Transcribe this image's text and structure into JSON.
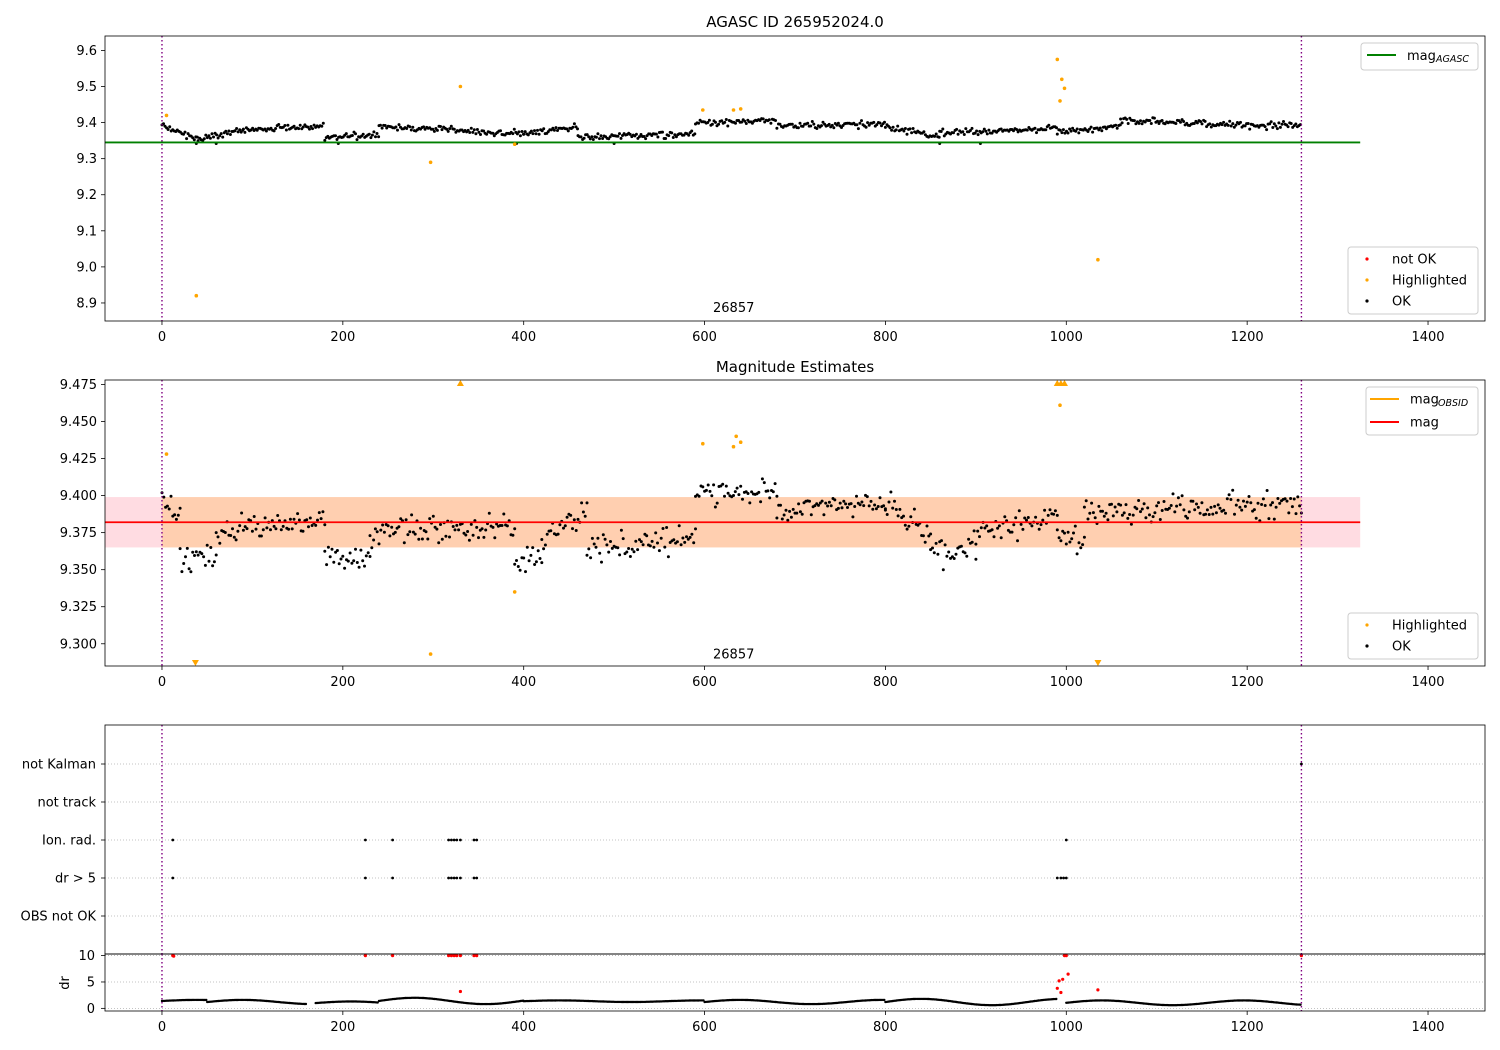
{
  "chart_data": [
    {
      "type": "scatter",
      "title": "AGASC ID 265952024.0",
      "xlim": [
        -63,
        1463
      ],
      "ylim": [
        8.85,
        9.64
      ],
      "x_ticks": [
        0,
        200,
        400,
        600,
        800,
        1000,
        1200,
        1400
      ],
      "y_ticks": [
        8.9,
        9.0,
        9.1,
        9.2,
        9.3,
        9.4,
        9.5,
        9.6
      ],
      "y_tick_labels": [
        "8.9",
        "9.0",
        "9.1",
        "9.2",
        "9.3",
        "9.4",
        "9.5",
        "9.6"
      ],
      "vlines": [
        0,
        1260
      ],
      "hline": {
        "name": "mag_AGASC",
        "y": 9.345,
        "x_range": [
          -63,
          1325
        ],
        "color": "#008000"
      },
      "annotation": {
        "text": "26857",
        "x": 630,
        "y": 8.875
      },
      "legend_top": [
        {
          "label": "mag",
          "sub": "AGASC",
          "color": "#008000"
        }
      ],
      "legend_bottom": [
        {
          "label": "not OK",
          "color": "#ff0000"
        },
        {
          "label": "Highlighted",
          "color": "#ffa500"
        },
        {
          "label": "OK",
          "color": "#000000"
        }
      ],
      "series": [
        {
          "name": "OK",
          "color": "#000000",
          "baseline": 9.345,
          "segments": [
            {
              "x_start": 0,
              "x_end": 40,
              "y_start": 9.39,
              "y_end": 9.355
            },
            {
              "x_start": 40,
              "x_end": 90,
              "y_start": 9.355,
              "y_end": 9.38
            },
            {
              "x_start": 90,
              "x_end": 180,
              "y_start": 9.38,
              "y_end": 9.39
            },
            {
              "x_start": 180,
              "x_end": 240,
              "y_start": 9.36,
              "y_end": 9.365
            },
            {
              "x_start": 240,
              "x_end": 400,
              "y_start": 9.39,
              "y_end": 9.37
            },
            {
              "x_start": 400,
              "x_end": 460,
              "y_start": 9.37,
              "y_end": 9.39
            },
            {
              "x_start": 460,
              "x_end": 590,
              "y_start": 9.36,
              "y_end": 9.37
            },
            {
              "x_start": 590,
              "x_end": 680,
              "y_start": 9.4,
              "y_end": 9.405
            },
            {
              "x_start": 680,
              "x_end": 800,
              "y_start": 9.39,
              "y_end": 9.395
            },
            {
              "x_start": 800,
              "x_end": 860,
              "y_start": 9.39,
              "y_end": 9.36
            },
            {
              "x_start": 860,
              "x_end": 990,
              "y_start": 9.37,
              "y_end": 9.385
            },
            {
              "x_start": 990,
              "x_end": 1060,
              "y_start": 9.375,
              "y_end": 9.39
            },
            {
              "x_start": 1060,
              "x_end": 1260,
              "y_start": 9.405,
              "y_end": 9.39
            }
          ]
        },
        {
          "name": "Highlighted",
          "color": "#ffa500",
          "points": [
            [
              5,
              9.42
            ],
            [
              38,
              8.92
            ],
            [
              297,
              9.29
            ],
            [
              330,
              9.5
            ],
            [
              390,
              9.34
            ],
            [
              598,
              9.435
            ],
            [
              632,
              9.435
            ],
            [
              640,
              9.438
            ],
            [
              990,
              9.575
            ],
            [
              993,
              9.46
            ],
            [
              995,
              9.52
            ],
            [
              998,
              9.495
            ],
            [
              1035,
              9.02
            ]
          ]
        }
      ]
    },
    {
      "type": "scatter",
      "title": "Magnitude Estimates",
      "xlim": [
        -63,
        1463
      ],
      "ylim": [
        9.285,
        9.478
      ],
      "x_ticks": [
        0,
        200,
        400,
        600,
        800,
        1000,
        1200,
        1400
      ],
      "y_ticks": [
        9.3,
        9.325,
        9.35,
        9.375,
        9.4,
        9.425,
        9.45,
        9.475
      ],
      "y_tick_labels": [
        "9.300",
        "9.325",
        "9.350",
        "9.375",
        "9.400",
        "9.425",
        "9.450",
        "9.475"
      ],
      "vlines": [
        0,
        1260
      ],
      "hline": {
        "name": "mag",
        "y": 9.382,
        "x_range": [
          -63,
          1325
        ],
        "color": "#ff0000"
      },
      "band": {
        "y_range": [
          9.365,
          9.399
        ],
        "x_range": [
          -63,
          1325
        ],
        "color": "#ffc0cb"
      },
      "obsid_band": {
        "y_range": [
          9.365,
          9.399
        ],
        "x_range": [
          0,
          1260
        ],
        "color": "#ffa500"
      },
      "annotation": {
        "text": "26857",
        "x": 630,
        "y": 9.29
      },
      "legend_top": [
        {
          "label": "mag",
          "sub": "OBSID",
          "color": "#ffa500"
        },
        {
          "label": "mag",
          "sub": "",
          "color": "#ff0000"
        }
      ],
      "legend_bottom": [
        {
          "label": "Highlighted",
          "color": "#ffa500"
        },
        {
          "label": "OK",
          "color": "#000000"
        }
      ],
      "series": [
        {
          "name": "OK",
          "color": "#000000",
          "spread": 0.009,
          "segments": [
            {
              "x_start": 0,
              "x_end": 20,
              "y_start": 9.395,
              "y_end": 9.39
            },
            {
              "x_start": 20,
              "x_end": 60,
              "y_start": 9.355,
              "y_end": 9.36
            },
            {
              "x_start": 60,
              "x_end": 180,
              "y_start": 9.375,
              "y_end": 9.385
            },
            {
              "x_start": 180,
              "x_end": 230,
              "y_start": 9.36,
              "y_end": 9.355
            },
            {
              "x_start": 230,
              "x_end": 390,
              "y_start": 9.375,
              "y_end": 9.38
            },
            {
              "x_start": 390,
              "x_end": 420,
              "y_start": 9.355,
              "y_end": 9.36
            },
            {
              "x_start": 420,
              "x_end": 470,
              "y_start": 9.37,
              "y_end": 9.39
            },
            {
              "x_start": 470,
              "x_end": 590,
              "y_start": 9.365,
              "y_end": 9.37
            },
            {
              "x_start": 590,
              "x_end": 680,
              "y_start": 9.4,
              "y_end": 9.405
            },
            {
              "x_start": 680,
              "x_end": 800,
              "y_start": 9.39,
              "y_end": 9.395
            },
            {
              "x_start": 800,
              "x_end": 850,
              "y_start": 9.395,
              "y_end": 9.37
            },
            {
              "x_start": 850,
              "x_end": 900,
              "y_start": 9.36,
              "y_end": 9.365
            },
            {
              "x_start": 900,
              "x_end": 990,
              "y_start": 9.375,
              "y_end": 9.385
            },
            {
              "x_start": 990,
              "x_end": 1020,
              "y_start": 9.375,
              "y_end": 9.37
            },
            {
              "x_start": 1020,
              "x_end": 1260,
              "y_start": 9.39,
              "y_end": 9.395
            }
          ]
        },
        {
          "name": "Highlighted",
          "color": "#ffa500",
          "points": [
            [
              5,
              9.428
            ],
            [
              297,
              9.293
            ],
            [
              390,
              9.335
            ],
            [
              598,
              9.435
            ],
            [
              632,
              9.433
            ],
            [
              635,
              9.44
            ],
            [
              640,
              9.436
            ],
            [
              993,
              9.461
            ]
          ]
        },
        {
          "name": "Highlighted (off scale)",
          "color": "#ffa500",
          "marker": "triangle",
          "points": [
            [
              37,
              9.287
            ],
            [
              330,
              9.477
            ],
            [
              990,
              9.477
            ],
            [
              994,
              9.477
            ],
            [
              998,
              9.477
            ],
            [
              1035,
              9.287
            ]
          ]
        }
      ]
    },
    {
      "type": "scatter",
      "title": "",
      "xlim": [
        -63,
        1463
      ],
      "categories": [
        "not Kalman",
        "not track",
        "Ion. rad.",
        "dr > 5",
        "OBS not OK"
      ],
      "flags": [
        {
          "category": "not Kalman",
          "x": [
            1260
          ]
        },
        {
          "category": "not track",
          "x": []
        },
        {
          "category": "Ion. rad.",
          "x": [
            12,
            225,
            255,
            317,
            320,
            323,
            326,
            330,
            345,
            348,
            1000
          ]
        },
        {
          "category": "dr > 5",
          "x": [
            12,
            225,
            255,
            317,
            320,
            323,
            326,
            330,
            345,
            348,
            990,
            994,
            997,
            1000
          ]
        },
        {
          "category": "OBS not OK",
          "x": []
        }
      ],
      "vlines": [
        0,
        1260
      ]
    },
    {
      "type": "scatter",
      "title": "",
      "ylabel": "dr",
      "xlim": [
        -63,
        1463
      ],
      "ylim": [
        -0.5,
        10.3
      ],
      "x_ticks": [
        0,
        200,
        400,
        600,
        800,
        1000,
        1200,
        1400
      ],
      "y_ticks": [
        0,
        5,
        10
      ],
      "vlines": [
        0,
        1260
      ],
      "series": [
        {
          "name": "OK",
          "color": "#000000",
          "segments": [
            {
              "x_start": 0,
              "x_end": 50,
              "y_start": 1.2,
              "y_end": 1.6
            },
            {
              "x_start": 50,
              "x_end": 160,
              "y_start": 0.8,
              "y_end": 1.6
            },
            {
              "x_start": 170,
              "x_end": 240,
              "y_start": 0.7,
              "y_end": 1.3
            },
            {
              "x_start": 240,
              "x_end": 400,
              "y_start": 0.8,
              "y_end": 2.0
            },
            {
              "x_start": 400,
              "x_end": 600,
              "y_start": 1.2,
              "y_end": 1.5
            },
            {
              "x_start": 600,
              "x_end": 800,
              "y_start": 0.8,
              "y_end": 1.6
            },
            {
              "x_start": 800,
              "x_end": 990,
              "y_start": 0.6,
              "y_end": 1.8
            },
            {
              "x_start": 1000,
              "x_end": 1260,
              "y_start": 0.6,
              "y_end": 1.5
            }
          ]
        },
        {
          "name": "not OK",
          "color": "#ff0000",
          "points": [
            [
              12,
              10
            ],
            [
              13,
              9.9
            ],
            [
              225,
              10
            ],
            [
              255,
              10
            ],
            [
              317,
              10
            ],
            [
              320,
              10
            ],
            [
              323,
              10
            ],
            [
              326,
              10
            ],
            [
              330,
              10
            ],
            [
              345,
              10
            ],
            [
              348,
              10
            ],
            [
              330,
              3.2
            ],
            [
              990,
              3.8
            ],
            [
              992,
              5.2
            ],
            [
              994,
              3.0
            ],
            [
              996,
              5.5
            ],
            [
              998,
              10
            ],
            [
              1000,
              10
            ],
            [
              1002,
              6.5
            ],
            [
              1035,
              3.5
            ],
            [
              1260,
              10
            ]
          ]
        }
      ]
    }
  ]
}
